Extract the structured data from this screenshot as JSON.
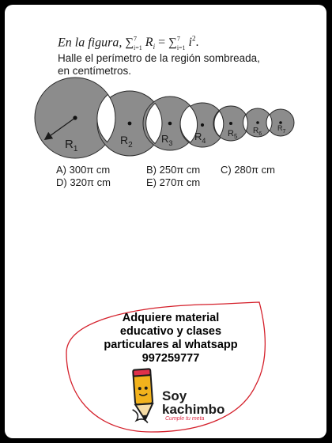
{
  "problem": {
    "statement_prefix": "En la figura,",
    "statement_formula": "∑ R  = ∑ i .",
    "sum_upper": "7",
    "sum_lower": "i=1",
    "var_R": "R",
    "sub_i": "i",
    "var_i": "i",
    "exponent": "2",
    "line2": "Halle el perímetro de la región sombreada,",
    "line3": "en centímetros."
  },
  "figure": {
    "labels": [
      "R1",
      "R2",
      "R3",
      "R4",
      "R5",
      "R6",
      "R7"
    ],
    "label_letter": "R",
    "subscripts": [
      "1",
      "2",
      "3",
      "4",
      "5",
      "6",
      "7"
    ],
    "fill_color": "#8c8c8c",
    "stroke_color": "#2a2a2a"
  },
  "options": {
    "a": "A) 300π cm",
    "b": "B) 250π cm",
    "c": "C) 280π cm",
    "d": "D) 320π cm",
    "e": "E) 270π cm"
  },
  "ad": {
    "line1": "Adquiere material",
    "line2": "educativo y clases",
    "line3": "particulares al whatsapp",
    "phone": "997259777",
    "border_color": "#d41f2a"
  },
  "logo": {
    "name_line1": "Soy",
    "name_line2": "kachimbo",
    "tagline": "Cumple tu meta",
    "icon": "pencil-icon"
  }
}
